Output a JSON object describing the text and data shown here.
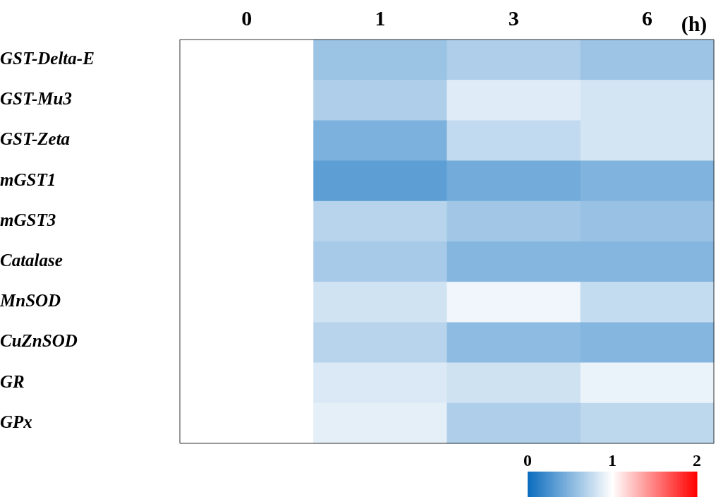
{
  "chart_data": {
    "type": "heatmap",
    "xlabel": "(h)",
    "categories": [
      "0",
      "1",
      "3",
      "6"
    ],
    "y_categories": [
      "GST-Delta-E",
      "GST-Mu3",
      "GST-Zeta",
      "mGST1",
      "mGST3",
      "Catalase",
      "MnSOD",
      "CuZnSOD",
      "GR",
      "GPx"
    ],
    "cells": [
      [
        1,
        0.59,
        0.67,
        0.6
      ],
      [
        1,
        0.67,
        0.87,
        0.82
      ],
      [
        1,
        0.47,
        0.75,
        0.82
      ],
      [
        1,
        0.34,
        0.43,
        0.48
      ],
      [
        1,
        0.71,
        0.62,
        0.58
      ],
      [
        1,
        0.64,
        0.5,
        0.5
      ],
      [
        1,
        0.81,
        0.94,
        0.76
      ],
      [
        1,
        0.71,
        0.54,
        0.5
      ],
      [
        1,
        0.85,
        0.8,
        0.92
      ],
      [
        1,
        0.89,
        0.67,
        0.73
      ]
    ],
    "clim": [
      0,
      2
    ],
    "cticks": [
      0,
      1,
      2
    ]
  }
}
